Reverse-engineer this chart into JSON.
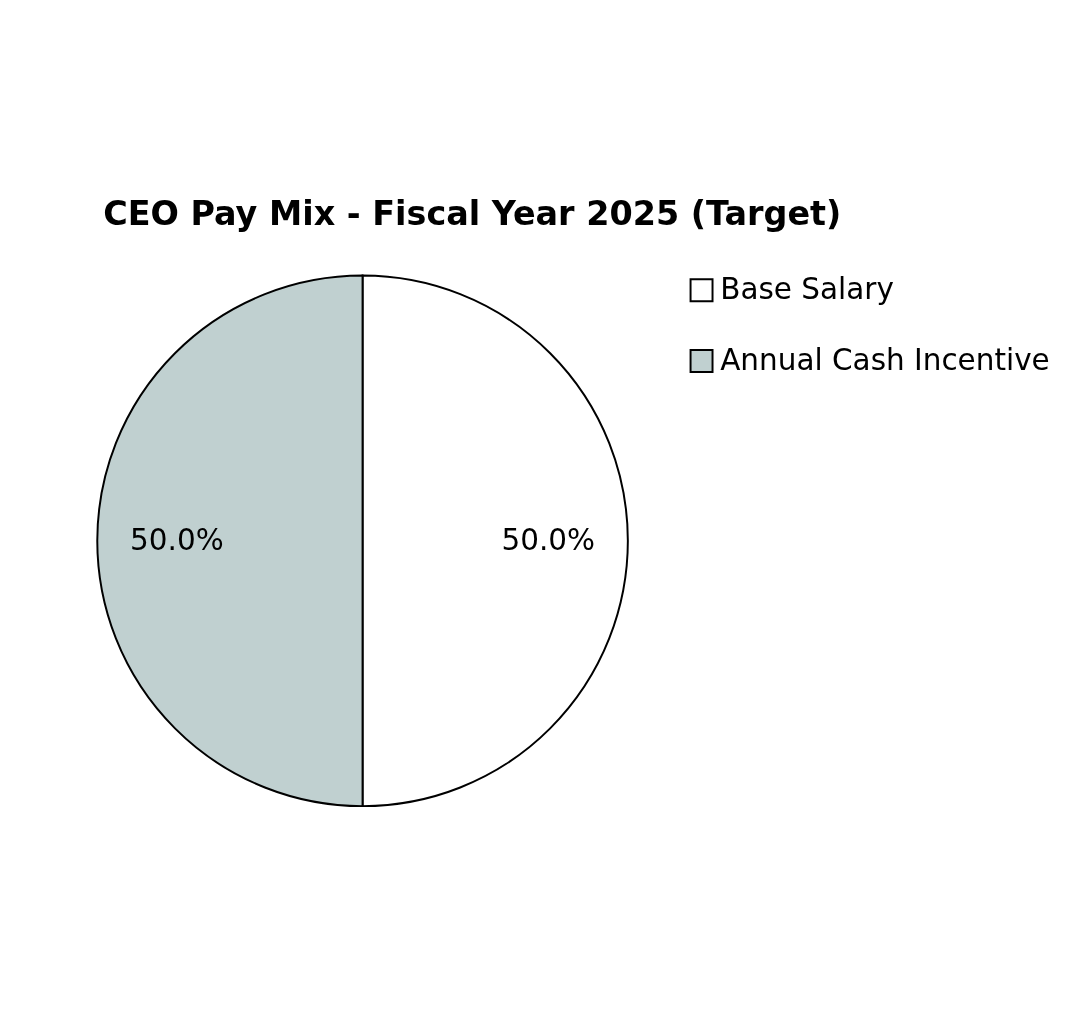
{
  "chart_data": {
    "type": "pie",
    "title": "CEO Pay Mix - Fiscal Year 2025 (Target)",
    "categories": [
      "Base Salary",
      "Annual Cash Incentive"
    ],
    "values": [
      50,
      50
    ],
    "colors": [
      "#ffffff",
      "#c0d0d0"
    ],
    "value_labels": [
      "50.0%",
      "50.0%"
    ],
    "legend": "right"
  }
}
